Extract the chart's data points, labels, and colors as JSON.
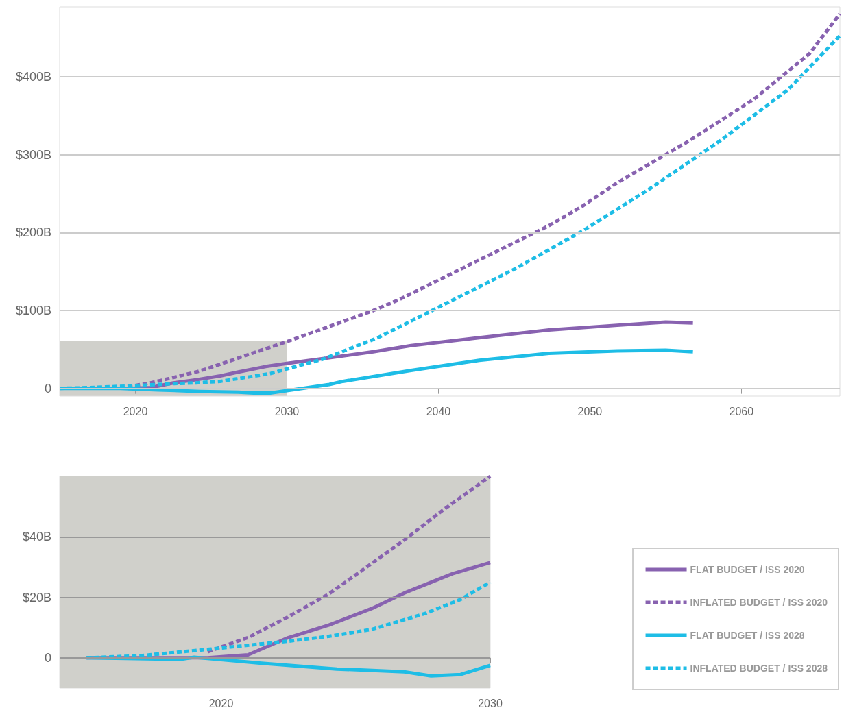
{
  "chart_data": [
    {
      "type": "line",
      "xlim": [
        2015,
        2066.5
      ],
      "xticks": [
        2020,
        2030,
        2040,
        2050,
        2060
      ],
      "ylim": [
        -10,
        490
      ],
      "yticks": [
        {
          "value": 0,
          "label": "0"
        },
        {
          "value": 100,
          "label": "$100B"
        },
        {
          "value": 200,
          "label": "$200B"
        },
        {
          "value": 300,
          "label": "$300B"
        },
        {
          "value": 400,
          "label": "$400B"
        }
      ],
      "grid": "y",
      "marker": "none",
      "series": [
        {
          "color": "#8862b0",
          "line_style": "solid",
          "x": [
            2019.5,
            2021,
            2022.5,
            2024,
            2025.6,
            2026.8,
            2028.6,
            2030,
            2032.3,
            2035.7,
            2038.2,
            2042.7,
            2047.3,
            2051.8,
            2055,
            2056.8
          ],
          "values": [
            0,
            1,
            7,
            11,
            16,
            21,
            28,
            32,
            38,
            47,
            55,
            65,
            75,
            81,
            85,
            84
          ]
        },
        {
          "color": "#8862b0",
          "line_style": "dashed",
          "x": [
            2019.5,
            2021,
            2022.5,
            2024,
            2025,
            2026.8,
            2028.3,
            2030,
            2032.3,
            2035.7,
            2037.3,
            2042.7,
            2047.3,
            2049.5,
            2051.8,
            2056.3,
            2060.8,
            2064.5,
            2066.5
          ],
          "values": [
            2,
            7,
            14,
            21,
            27,
            39,
            49,
            60,
            76,
            100,
            113,
            165,
            209,
            234,
            264,
            315,
            371,
            430,
            481
          ]
        },
        {
          "color": "#1ebde6",
          "line_style": "solid",
          "x": [
            2015,
            2019,
            2021.5,
            2024.3,
            2026.8,
            2027.8,
            2028.9,
            2030,
            2032.8,
            2033.7,
            2038.2,
            2042.7,
            2047.3,
            2051.8,
            2055,
            2056.8
          ],
          "values": [
            0,
            0,
            -2,
            -4,
            -5,
            -6,
            -6,
            -3,
            5,
            9,
            23,
            36,
            45,
            48,
            49,
            47
          ]
        },
        {
          "color": "#1ebde6",
          "line_style": "dashed",
          "x": [
            2015,
            2017,
            2019.5,
            2022.5,
            2024,
            2025.6,
            2027.6,
            2028.9,
            2030,
            2032.3,
            2036,
            2040.5,
            2045,
            2049.5,
            2054,
            2058.6,
            2063.1,
            2066.5
          ],
          "values": [
            0,
            1,
            3,
            6,
            7,
            9,
            15,
            19,
            25,
            37,
            65,
            109,
            153,
            202,
            257,
            318,
            384,
            453
          ]
        }
      ]
    },
    {
      "type": "line",
      "xlim": [
        2014,
        2030
      ],
      "xticks": [
        2020,
        2030
      ],
      "ylim": [
        -10,
        60
      ],
      "yticks": [
        {
          "value": 0,
          "label": "0"
        },
        {
          "value": 20,
          "label": "$20B"
        },
        {
          "value": 40,
          "label": "$40B"
        }
      ],
      "grid": "y",
      "marker": "none",
      "legend": "bottom right",
      "bands": [
        {
          "axis": "x",
          "from": 2014,
          "to": 2030,
          "color": "#d0d0cb"
        }
      ],
      "series": [
        {
          "name": "FLAT BUDGET / ISS 2020",
          "color": "#8862b0",
          "line_style": "solid",
          "x": [
            2015,
            2019.5,
            2021,
            2022.5,
            2024,
            2025.6,
            2026.8,
            2028.6,
            2030
          ],
          "values": [
            0,
            0,
            1,
            6.7,
            10.8,
            16.3,
            21.4,
            27.8,
            31.5
          ]
        },
        {
          "name": "INFLATED BUDGET / ISS 2020",
          "color": "#8862b0",
          "line_style": "dashed",
          "x": [
            2019.5,
            2021,
            2022.5,
            2024,
            2025,
            2026.8,
            2028.3,
            2030
          ],
          "values": [
            2,
            6.7,
            13.6,
            21.1,
            27.4,
            38.9,
            49.2,
            60
          ]
        },
        {
          "name": "FLAT BUDGET / ISS 2028",
          "color": "#1ebde6",
          "line_style": "solid",
          "x": [
            2015,
            2018.5,
            2019,
            2021.5,
            2024.3,
            2026.8,
            2027.8,
            2028.9,
            2030
          ],
          "values": [
            0,
            -0.5,
            0.2,
            -1.8,
            -3.7,
            -4.6,
            -6,
            -5.5,
            -2.5
          ]
        },
        {
          "name": "INFLATED BUDGET / ISS 2028",
          "color": "#1ebde6",
          "line_style": "dashed",
          "x": [
            2015,
            2017,
            2019.5,
            2022.5,
            2024,
            2025.6,
            2027.6,
            2028.9,
            2030
          ],
          "values": [
            0,
            0.7,
            2.8,
            5.5,
            7.1,
            9.4,
            14.7,
            19.3,
            25
          ]
        }
      ]
    }
  ]
}
